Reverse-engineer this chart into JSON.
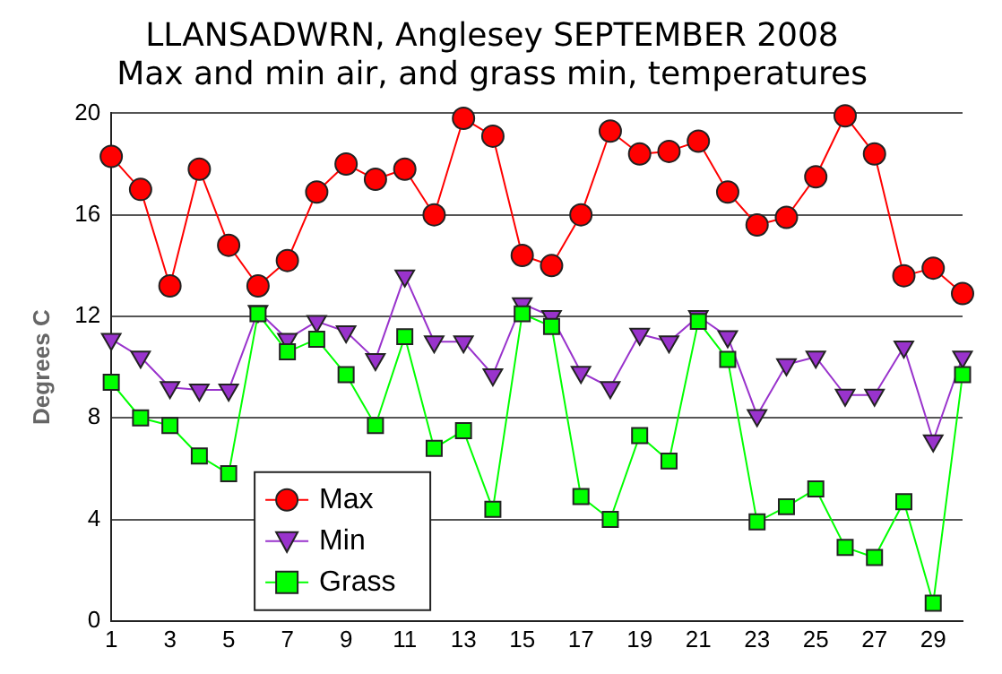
{
  "chart_data": {
    "type": "line",
    "title": [
      "LLANSADWRN, Anglesey SEPTEMBER 2008",
      "Max and min air, and grass min, temperatures"
    ],
    "ylabel": "Degrees C",
    "x": [
      1,
      2,
      3,
      4,
      5,
      6,
      7,
      8,
      9,
      10,
      11,
      12,
      13,
      14,
      15,
      16,
      17,
      18,
      19,
      20,
      21,
      22,
      23,
      24,
      25,
      26,
      27,
      28,
      29,
      30
    ],
    "xlim": [
      1,
      30
    ],
    "xticks": [
      1,
      3,
      5,
      7,
      9,
      11,
      13,
      15,
      17,
      19,
      21,
      23,
      25,
      27,
      29
    ],
    "series": [
      {
        "name": "Max",
        "color": "#ff0000",
        "marker": "circle",
        "values": [
          18.3,
          17,
          13.2,
          17.8,
          14.8,
          13.2,
          14.2,
          16.9,
          18.0,
          17.4,
          17.8,
          16.0,
          19.8,
          19.1,
          14.4,
          14.0,
          16.0,
          19.3,
          18.4,
          18.5,
          18.9,
          16.9,
          15.6,
          15.9,
          17.5,
          19.9,
          18.4,
          13.6,
          13.9,
          12.9
        ]
      },
      {
        "name": "Min",
        "color": "#9933cc",
        "marker": "triangle",
        "values": [
          11.1,
          10.4,
          9.2,
          9.1,
          9.1,
          12.2,
          11.1,
          11.8,
          11.4,
          10.3,
          13.6,
          11.0,
          11.0,
          9.7,
          12.5,
          12.0,
          9.8,
          9.2,
          11.3,
          11.0,
          12.0,
          11.2,
          8.1,
          10.1,
          10.4,
          8.9,
          8.9,
          10.8,
          7.1,
          10.4
        ]
      },
      {
        "name": "Grass",
        "color": "#00ff00",
        "marker": "square",
        "values": [
          9.4,
          8.0,
          7.7,
          6.5,
          5.8,
          12.1,
          10.6,
          11.1,
          9.7,
          7.7,
          11.2,
          6.8,
          7.5,
          4.4,
          12.1,
          11.6,
          4.9,
          4.0,
          7.3,
          6.3,
          11.8,
          10.3,
          3.9,
          4.5,
          5.2,
          2.9,
          2.5,
          4.7,
          0.7,
          9.7
        ]
      }
    ],
    "ylim": [
      0,
      20
    ],
    "yticks": [
      0,
      4,
      8,
      12,
      16,
      20
    ],
    "grid": "y",
    "legend": "bottom left"
  }
}
